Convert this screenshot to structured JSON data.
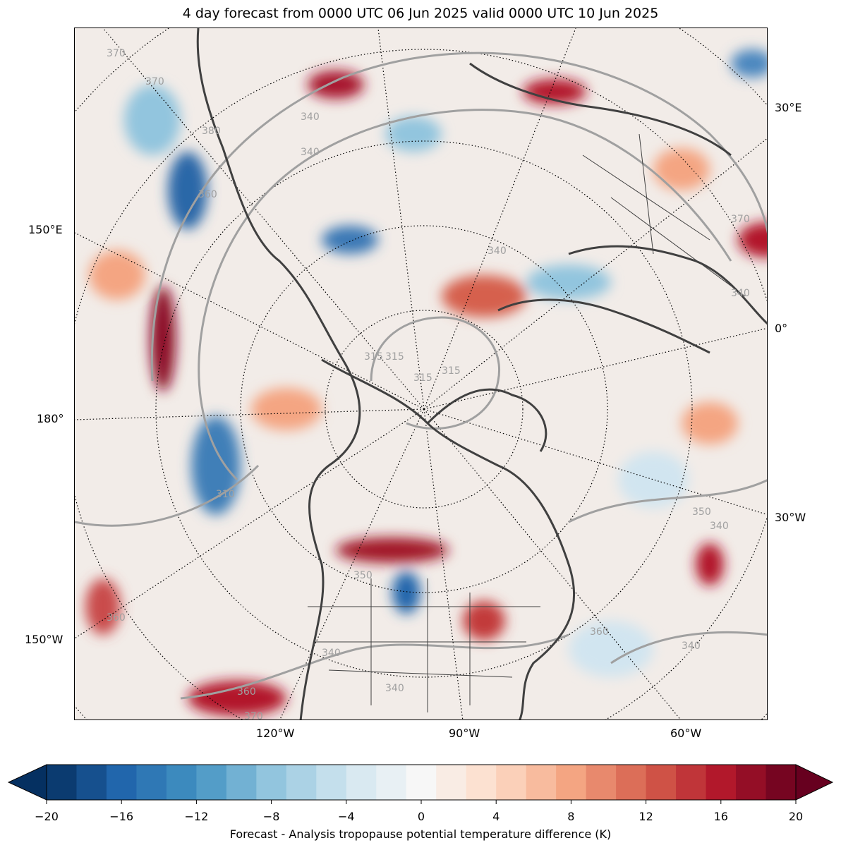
{
  "title": "4 day forecast from 0000 UTC 06 Jun 2025 valid 0000 UTC 10 Jun 2025",
  "map": {
    "projection": "north-polar-stereographic",
    "left_labels": [
      "150°E",
      "180°",
      "150°W"
    ],
    "right_labels": [
      "30°E",
      "0°",
      "30°W"
    ],
    "bottom_labels": [
      "120°W",
      "90°W",
      "60°W"
    ],
    "contour_labels": [
      "370",
      "370",
      "380",
      "340",
      "340",
      "315",
      "315",
      "315",
      "315",
      "350",
      "360",
      "340",
      "360",
      "340",
      "360",
      "350",
      "340",
      "370",
      "360",
      "340",
      "340",
      "370",
      "310",
      "340"
    ]
  },
  "colorbar": {
    "label": "Forecast - Analysis tropopause potential temperature difference (K)",
    "ticks": [
      "−20",
      "−16",
      "−12",
      "−8",
      "−4",
      "0",
      "4",
      "8",
      "12",
      "16",
      "20"
    ],
    "min": -20,
    "max": 20,
    "step": 1.6,
    "colormap": "RdBu_r",
    "extend": "both"
  },
  "colors": {
    "neg_max": "#053061",
    "pos_max": "#67001f",
    "zero": "#f7f7f7",
    "coastline": "#404040",
    "contour": "#a0a0a0"
  }
}
